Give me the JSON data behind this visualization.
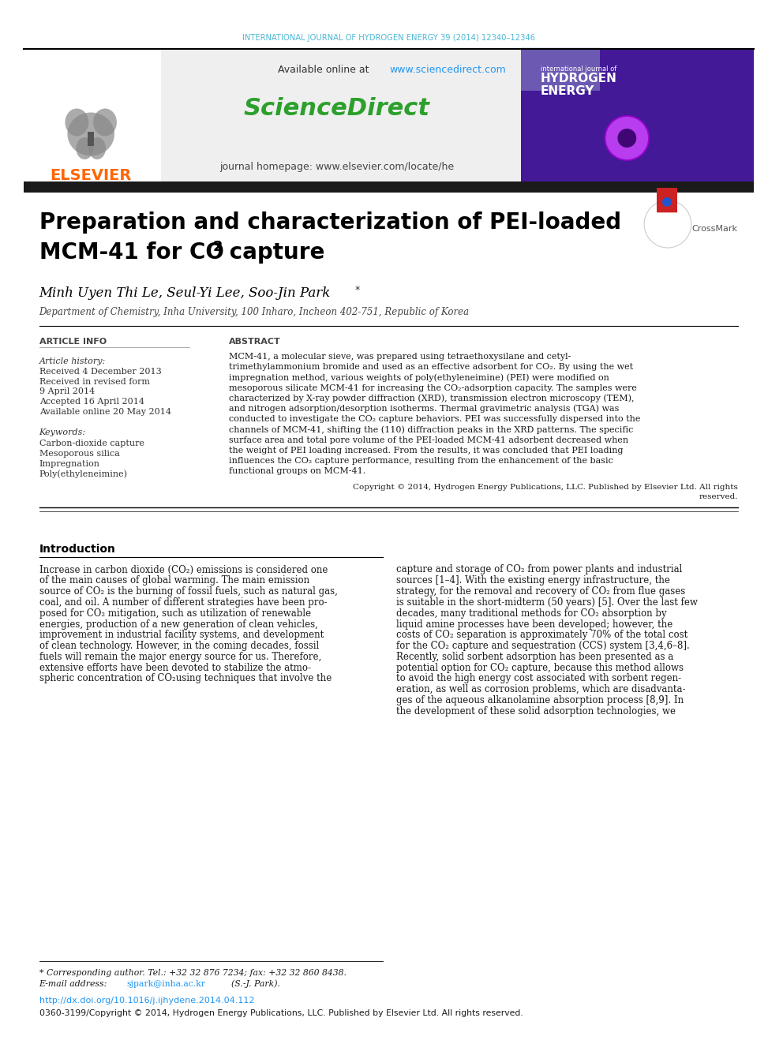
{
  "page_bg": "#ffffff",
  "journal_line": "INTERNATIONAL JOURNAL OF HYDROGEN ENERGY 39 (2014) 12340–12346",
  "journal_line_color": "#4db8d4",
  "header_bg": "#f0f0f0",
  "elsevier_color": "#ff6600",
  "elsevier_text": "ELSEVIER",
  "sciencedirect_text": "ScienceDirect",
  "sciencedirect_color": "#2ca02c",
  "available_online_url_color": "#2196F3",
  "journal_homepage": "journal homepage: www.elsevier.com/locate/he",
  "black_bar_color": "#1a1a1a",
  "title_line1": "Preparation and characterization of PEI-loaded",
  "title_line2": "MCM-41 for CO",
  "title_line2_sub": "2",
  "title_line2_end": " capture",
  "title_color": "#000000",
  "affiliation": "Department of Chemistry, Inha University, 100 Inharo, Incheon 402-751, Republic of Korea",
  "article_info_header": "ARTICLE INFO",
  "abstract_header": "ABSTRACT",
  "article_history_label": "Article history:",
  "received_text": "Received 4 December 2013",
  "revised_text": "Received in revised form",
  "revised_date": "9 April 2014",
  "accepted_text": "Accepted 16 April 2014",
  "available_text": "Available online 20 May 2014",
  "keywords_label": "Keywords:",
  "keyword1": "Carbon-dioxide capture",
  "keyword2": "Mesoporous silica",
  "keyword3": "Impregnation",
  "keyword4": "Poly(ethyleneimine)",
  "copyright_text": "Copyright © 2014, Hydrogen Energy Publications, LLC. Published by Elsevier Ltd. All rights reserved.",
  "intro_header": "Introduction",
  "footnote_corresponding": "* Corresponding author. Tel.: +32 32 876 7234; fax: +32 32 860 8438.",
  "footnote_doi": "http://dx.doi.org/10.1016/j.ijhydene.2014.04.112",
  "footnote_issn": "0360-3199/Copyright © 2014, Hydrogen Energy Publications, LLC. Published by Elsevier Ltd. All rights reserved.",
  "doi_color": "#2196F3",
  "email_color": "#2196F3",
  "abstract_lines": [
    "MCM-41, a molecular sieve, was prepared using tetraethoxysilane and cetyl-",
    "trimethylammonium bromide and used as an effective adsorbent for CO₂. By using the wet",
    "impregnation method, various weights of poly(ethyleneimine) (PEI) were modified on",
    "mesoporous silicate MCM-41 for increasing the CO₂-adsorption capacity. The samples were",
    "characterized by X-ray powder diffraction (XRD), transmission electron microscopy (TEM),",
    "and nitrogen adsorption/desorption isotherms. Thermal gravimetric analysis (TGA) was",
    "conducted to investigate the CO₂ capture behaviors. PEI was successfully dispersed into the",
    "channels of MCM-41, shifting the (110) diffraction peaks in the XRD patterns. The specific",
    "surface area and total pore volume of the PEI-loaded MCM-41 adsorbent decreased when",
    "the weight of PEI loading increased. From the results, it was concluded that PEI loading",
    "influences the CO₂ capture performance, resulting from the enhancement of the basic",
    "functional groups on MCM-41."
  ],
  "intro1_lines": [
    "Increase in carbon dioxide (CO₂) emissions is considered one",
    "of the main causes of global warming. The main emission",
    "source of CO₂ is the burning of fossil fuels, such as natural gas,",
    "coal, and oil. A number of different strategies have been pro-",
    "posed for CO₂ mitigation, such as utilization of renewable",
    "energies, production of a new generation of clean vehicles,",
    "improvement in industrial facility systems, and development",
    "of clean technology. However, in the coming decades, fossil",
    "fuels will remain the major energy source for us. Therefore,",
    "extensive efforts have been devoted to stabilize the atmo-",
    "spheric concentration of CO₂using techniques that involve the"
  ],
  "intro2_lines": [
    "capture and storage of CO₂ from power plants and industrial",
    "sources [1–4]. With the existing energy infrastructure, the",
    "strategy, for the removal and recovery of CO₂ from flue gases",
    "is suitable in the short-midterm (50 years) [5]. Over the last few",
    "decades, many traditional methods for CO₂ absorption by",
    "liquid amine processes have been developed; however, the",
    "costs of CO₂ separation is approximately 70% of the total cost",
    "for the CO₂ capture and sequestration (CCS) system [3,4,6–8].",
    "Recently, solid sorbent adsorption has been presented as a",
    "potential option for CO₂ capture, because this method allows",
    "to avoid the high energy cost associated with sorbent regen-",
    "eration, as well as corrosion problems, which are disadvanta-",
    "ges of the aqueous alkanolamine absorption process [8,9]. In",
    "the development of these solid adsorption technologies, we"
  ]
}
